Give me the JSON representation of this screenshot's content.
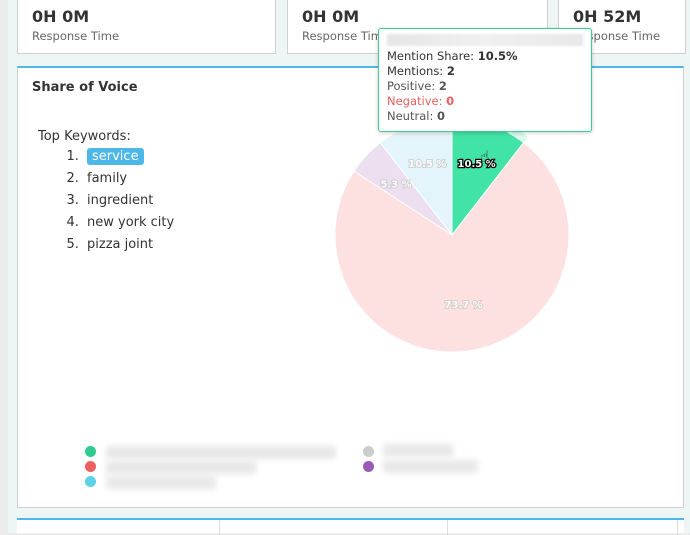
{
  "cards": [
    {
      "value": "0H 0M",
      "label": "Response Time"
    },
    {
      "value": "0H 0M",
      "label": "Response Time"
    },
    {
      "value": "0H 52M",
      "label": "Response Time"
    }
  ],
  "panel": {
    "title": "Share of Voice",
    "keywords_label": "Top Keywords:",
    "keywords": [
      "service",
      "family",
      "ingredient",
      "new york city",
      "pizza joint"
    ],
    "highlighted_keyword": "service"
  },
  "tooltip": {
    "mention_share_label": "Mention Share: ",
    "mention_share": "10.5%",
    "mentions_label": "Mentions: ",
    "mentions": "2",
    "positive_label": "Positive: ",
    "positive": "2",
    "negative_label": "Negative: ",
    "negative": "0",
    "neutral_label": "Neutral: ",
    "neutral": "0"
  },
  "colors": {
    "accent": "#4db8e8",
    "positive": "#3ccf8e",
    "negative": "#ec5f5f"
  },
  "chart_data": {
    "type": "pie",
    "slices": [
      {
        "value": 10.5,
        "label": "10.5 %",
        "color": "#42e3a6",
        "highlighted": true
      },
      {
        "value": 73.7,
        "label": "73.7 %",
        "color": "#fde0e0"
      },
      {
        "value": 5.3,
        "label": "5.3 %",
        "color": "#ecdff0"
      },
      {
        "value": 10.5,
        "label": "10.5 %",
        "color": "#e3f4fa"
      }
    ],
    "legend": {
      "placement": "bottom",
      "colors": [
        "#2ecc8f",
        "#ec5f5f",
        "#5bd0e6",
        "#cccccc",
        "#9b59b6"
      ]
    }
  }
}
